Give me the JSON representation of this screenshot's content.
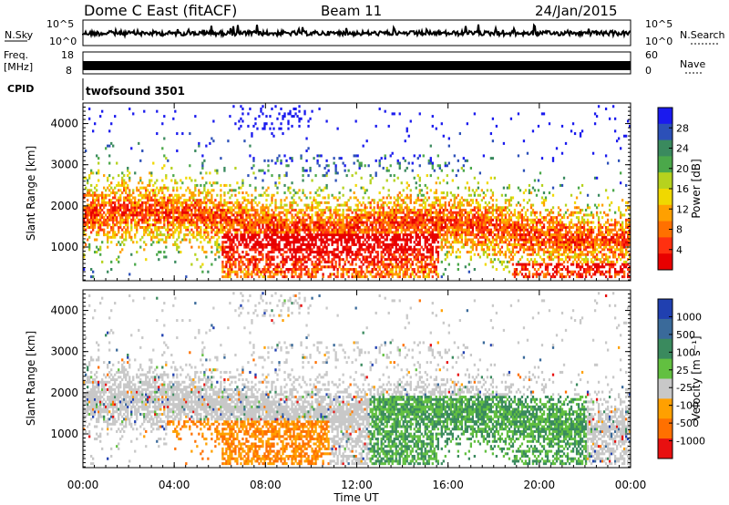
{
  "header": {
    "station": "Dome C East (fitACF)",
    "beam": "Beam 11",
    "date": "24/Jan/2015"
  },
  "top_panels": {
    "nsky_label": "N.Sky",
    "nsky_ticks": [
      "10^5",
      "10^0"
    ],
    "nsearch_label": "N.Search",
    "nsearch_ticks": [
      "10^5",
      "10^0"
    ],
    "freq_label": "Freq.",
    "freq_unit": "[MHz]",
    "freq_ticks": [
      "18",
      "8"
    ],
    "nave_label": "Nave",
    "nave_ticks": [
      "60",
      "0"
    ],
    "cpid_label": "CPID",
    "cpid_value": "twofsound 3501"
  },
  "chart_data": [
    {
      "type": "heatmap",
      "name": "power",
      "ylabel": "Slant Range [km]",
      "ylim": [
        180,
        4500
      ],
      "yticks": [
        "1000",
        "2000",
        "3000",
        "4000"
      ],
      "colorbar_label": "Power [dB]",
      "colorbar_ticks": [
        "28",
        "24",
        "20",
        "16",
        "12",
        "8",
        "4"
      ],
      "colors": [
        "#1a1aee",
        "#2c50b8",
        "#3a8a5e",
        "#4ba84a",
        "#b6d21e",
        "#f0d800",
        "#ffa000",
        "#ff7000",
        "#ff3010",
        "#e80000"
      ]
    },
    {
      "type": "heatmap",
      "name": "velocity",
      "ylabel": "Slant Range [km]",
      "ylim": [
        180,
        4500
      ],
      "yticks": [
        "1000",
        "2000",
        "3000",
        "4000"
      ],
      "colorbar_label": "Velocity [m s⁻¹]",
      "colorbar_ticks": [
        "1000",
        "500",
        "100",
        "25",
        "-25",
        "-100",
        "-500",
        "-1000"
      ],
      "colors": [
        "#2040b0",
        "#3a6a9a",
        "#3a8a5e",
        "#62c040",
        "#c8c8c8",
        "#ffa000",
        "#ff7000",
        "#e81010"
      ]
    }
  ],
  "xaxis": {
    "label": "Time UT",
    "ticks": [
      "00:00",
      "04:00",
      "08:00",
      "12:00",
      "16:00",
      "20:00",
      "00:00"
    ]
  }
}
